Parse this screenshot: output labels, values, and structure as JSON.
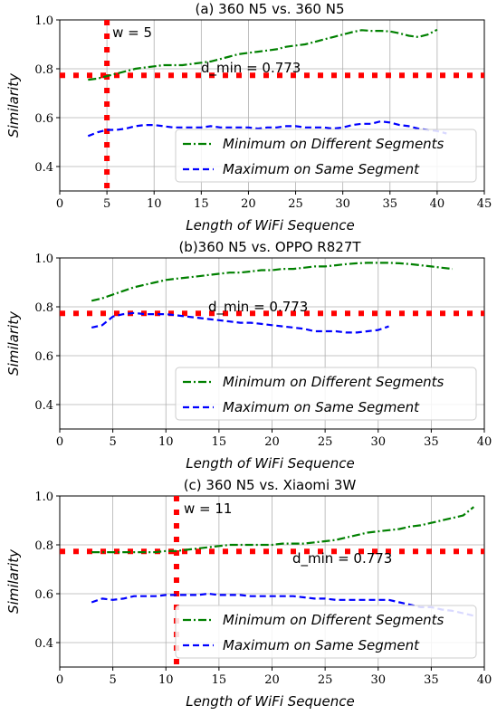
{
  "chart_data": [
    {
      "type": "line",
      "title": "(a) 360 N5 vs. 360 N5",
      "xlabel": "Length of WiFi Sequence",
      "ylabel": "Similarity",
      "xlim": [
        0,
        45
      ],
      "ylim": [
        0.3,
        1.0
      ],
      "xticks": [
        "0",
        "5",
        "10",
        "15",
        "20",
        "25",
        "30",
        "35",
        "40",
        "45"
      ],
      "yticks": [
        "0.4",
        "0.6",
        "0.8",
        "1.0"
      ],
      "grid": true,
      "legend": "lower right",
      "threshold": {
        "value": 0.773,
        "label": "d_min = 0.773",
        "color": "#ff0000"
      },
      "vline": {
        "x": 5,
        "label": "w = 5",
        "color": "#ff0000"
      },
      "series": [
        {
          "name": "Minimum on Different Segments",
          "color": "#008000",
          "dash": "dashdot",
          "x": [
            3,
            4,
            5,
            6,
            7,
            8,
            9,
            10,
            11,
            12,
            13,
            14,
            15,
            16,
            17,
            18,
            19,
            20,
            21,
            22,
            23,
            24,
            25,
            26,
            27,
            28,
            29,
            30,
            31,
            32,
            33,
            34,
            35,
            36,
            37,
            38,
            39,
            40
          ],
          "values": [
            0.755,
            0.76,
            0.77,
            0.78,
            0.79,
            0.8,
            0.805,
            0.81,
            0.815,
            0.815,
            0.815,
            0.82,
            0.825,
            0.83,
            0.84,
            0.85,
            0.86,
            0.865,
            0.87,
            0.875,
            0.88,
            0.89,
            0.895,
            0.9,
            0.91,
            0.92,
            0.93,
            0.94,
            0.95,
            0.958,
            0.955,
            0.955,
            0.953,
            0.945,
            0.935,
            0.93,
            0.94,
            0.96
          ]
        },
        {
          "name": "Maximum on Same Segment",
          "color": "#0000ff",
          "dash": "dashed",
          "x": [
            3,
            4,
            5,
            6,
            7,
            8,
            9,
            10,
            11,
            12,
            13,
            14,
            15,
            16,
            17,
            18,
            19,
            20,
            21,
            22,
            23,
            24,
            25,
            26,
            27,
            28,
            29,
            30,
            31,
            32,
            33,
            34,
            35,
            36,
            37,
            38,
            39,
            40,
            41
          ],
          "values": [
            0.525,
            0.54,
            0.55,
            0.55,
            0.555,
            0.565,
            0.57,
            0.57,
            0.565,
            0.56,
            0.56,
            0.56,
            0.56,
            0.565,
            0.56,
            0.56,
            0.56,
            0.56,
            0.555,
            0.56,
            0.56,
            0.565,
            0.565,
            0.56,
            0.56,
            0.56,
            0.555,
            0.56,
            0.57,
            0.575,
            0.575,
            0.585,
            0.58,
            0.57,
            0.565,
            0.555,
            0.55,
            0.545,
            0.535
          ]
        }
      ]
    },
    {
      "type": "line",
      "title": "(b)360 N5 vs. OPPO R827T",
      "xlabel": "Length of WiFi Sequence",
      "ylabel": "Similarity",
      "xlim": [
        0,
        40
      ],
      "ylim": [
        0.3,
        1.0
      ],
      "xticks": [
        "0",
        "5",
        "10",
        "15",
        "20",
        "25",
        "30",
        "35",
        "40"
      ],
      "yticks": [
        "0.4",
        "0.6",
        "0.8",
        "1.0"
      ],
      "grid": true,
      "legend": "lower right",
      "threshold": {
        "value": 0.773,
        "label": "d_min = 0.773",
        "color": "#ff0000"
      },
      "series": [
        {
          "name": "Minimum on Different Segments",
          "color": "#008000",
          "dash": "dashdot",
          "x": [
            3,
            4,
            5,
            6,
            7,
            8,
            9,
            10,
            11,
            12,
            13,
            14,
            15,
            16,
            17,
            18,
            19,
            20,
            21,
            22,
            23,
            24,
            25,
            26,
            27,
            28,
            29,
            30,
            31,
            32,
            33,
            34,
            35,
            36,
            37
          ],
          "values": [
            0.825,
            0.835,
            0.85,
            0.865,
            0.88,
            0.89,
            0.9,
            0.91,
            0.915,
            0.92,
            0.925,
            0.93,
            0.935,
            0.94,
            0.94,
            0.945,
            0.95,
            0.95,
            0.955,
            0.955,
            0.96,
            0.965,
            0.965,
            0.97,
            0.975,
            0.978,
            0.98,
            0.98,
            0.98,
            0.978,
            0.975,
            0.97,
            0.965,
            0.96,
            0.955
          ]
        },
        {
          "name": "Maximum on Same Segment",
          "color": "#0000ff",
          "dash": "dashed",
          "x": [
            3,
            4,
            5,
            6,
            7,
            8,
            9,
            10,
            11,
            12,
            13,
            14,
            15,
            16,
            17,
            18,
            19,
            20,
            21,
            22,
            23,
            24,
            25,
            26,
            27,
            28,
            29,
            30,
            31
          ],
          "values": [
            0.715,
            0.725,
            0.76,
            0.77,
            0.775,
            0.77,
            0.77,
            0.77,
            0.765,
            0.76,
            0.755,
            0.75,
            0.745,
            0.74,
            0.735,
            0.735,
            0.73,
            0.725,
            0.72,
            0.715,
            0.71,
            0.7,
            0.7,
            0.7,
            0.695,
            0.695,
            0.7,
            0.705,
            0.72
          ]
        }
      ]
    },
    {
      "type": "line",
      "title": "(c) 360 N5 vs. Xiaomi 3W",
      "xlabel": "Length of WiFi Sequence",
      "ylabel": "Similarity",
      "xlim": [
        0,
        40
      ],
      "ylim": [
        0.3,
        1.0
      ],
      "xticks": [
        "0",
        "5",
        "10",
        "15",
        "20",
        "25",
        "30",
        "35",
        "40"
      ],
      "yticks": [
        "0.4",
        "0.6",
        "0.8",
        "1.0"
      ],
      "grid": true,
      "legend": "lower right",
      "threshold": {
        "value": 0.773,
        "label": "d_min = 0.773",
        "color": "#ff0000"
      },
      "vline": {
        "x": 11,
        "label": "w = 11",
        "color": "#ff0000"
      },
      "series": [
        {
          "name": "Minimum on Different Segments",
          "color": "#008000",
          "dash": "dashdot",
          "x": [
            3,
            4,
            5,
            6,
            7,
            8,
            9,
            10,
            11,
            12,
            13,
            14,
            15,
            16,
            17,
            18,
            19,
            20,
            21,
            22,
            23,
            24,
            25,
            26,
            27,
            28,
            29,
            30,
            31,
            32,
            33,
            34,
            35,
            36,
            37,
            38,
            39
          ],
          "values": [
            0.77,
            0.77,
            0.77,
            0.77,
            0.77,
            0.77,
            0.77,
            0.775,
            0.775,
            0.78,
            0.785,
            0.79,
            0.795,
            0.8,
            0.8,
            0.8,
            0.8,
            0.8,
            0.805,
            0.805,
            0.805,
            0.81,
            0.815,
            0.82,
            0.83,
            0.84,
            0.85,
            0.855,
            0.86,
            0.865,
            0.875,
            0.88,
            0.89,
            0.9,
            0.91,
            0.92,
            0.955
          ]
        },
        {
          "name": "Maximum on Same Segment",
          "color": "#0000ff",
          "dash": "dashed",
          "x": [
            3,
            4,
            5,
            6,
            7,
            8,
            9,
            10,
            11,
            12,
            13,
            14,
            15,
            16,
            17,
            18,
            19,
            20,
            21,
            22,
            23,
            24,
            25,
            26,
            27,
            28,
            29,
            30,
            31,
            32,
            33,
            34,
            35,
            36,
            37,
            38,
            39
          ],
          "values": [
            0.565,
            0.58,
            0.575,
            0.58,
            0.59,
            0.59,
            0.59,
            0.595,
            0.595,
            0.595,
            0.595,
            0.6,
            0.595,
            0.595,
            0.595,
            0.59,
            0.59,
            0.59,
            0.59,
            0.59,
            0.585,
            0.58,
            0.58,
            0.575,
            0.575,
            0.575,
            0.575,
            0.575,
            0.575,
            0.565,
            0.555,
            0.545,
            0.545,
            0.535,
            0.53,
            0.52,
            0.51
          ]
        }
      ]
    }
  ]
}
